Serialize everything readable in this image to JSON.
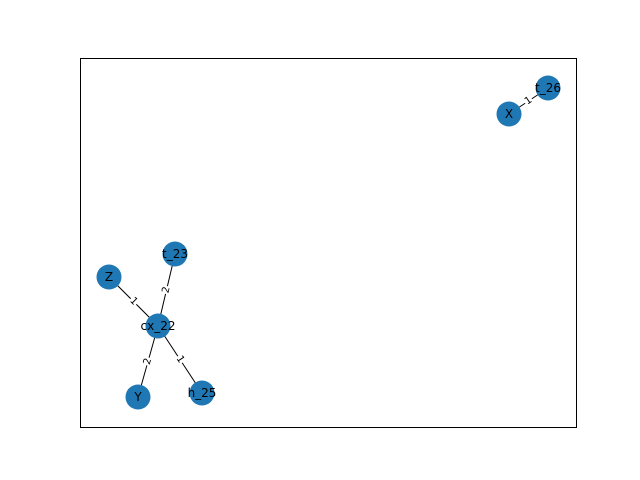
{
  "graph": {
    "node_color": "#1f77b4",
    "edge_color": "#000000",
    "frame_color": "#000000",
    "nodes": [
      {
        "id": "cx_22",
        "label": "cx_22"
      },
      {
        "id": "t_23",
        "label": "t_23"
      },
      {
        "id": "Z",
        "label": "Z"
      },
      {
        "id": "Y",
        "label": "Y"
      },
      {
        "id": "h_25",
        "label": "h_25"
      },
      {
        "id": "X",
        "label": "X"
      },
      {
        "id": "t_26",
        "label": "t_26"
      }
    ],
    "edges": [
      {
        "source": "cx_22",
        "target": "t_23",
        "weight": "2"
      },
      {
        "source": "cx_22",
        "target": "Z",
        "weight": "1"
      },
      {
        "source": "cx_22",
        "target": "Y",
        "weight": "2"
      },
      {
        "source": "cx_22",
        "target": "h_25",
        "weight": "1"
      },
      {
        "source": "X",
        "target": "t_26",
        "weight": "1"
      }
    ]
  }
}
